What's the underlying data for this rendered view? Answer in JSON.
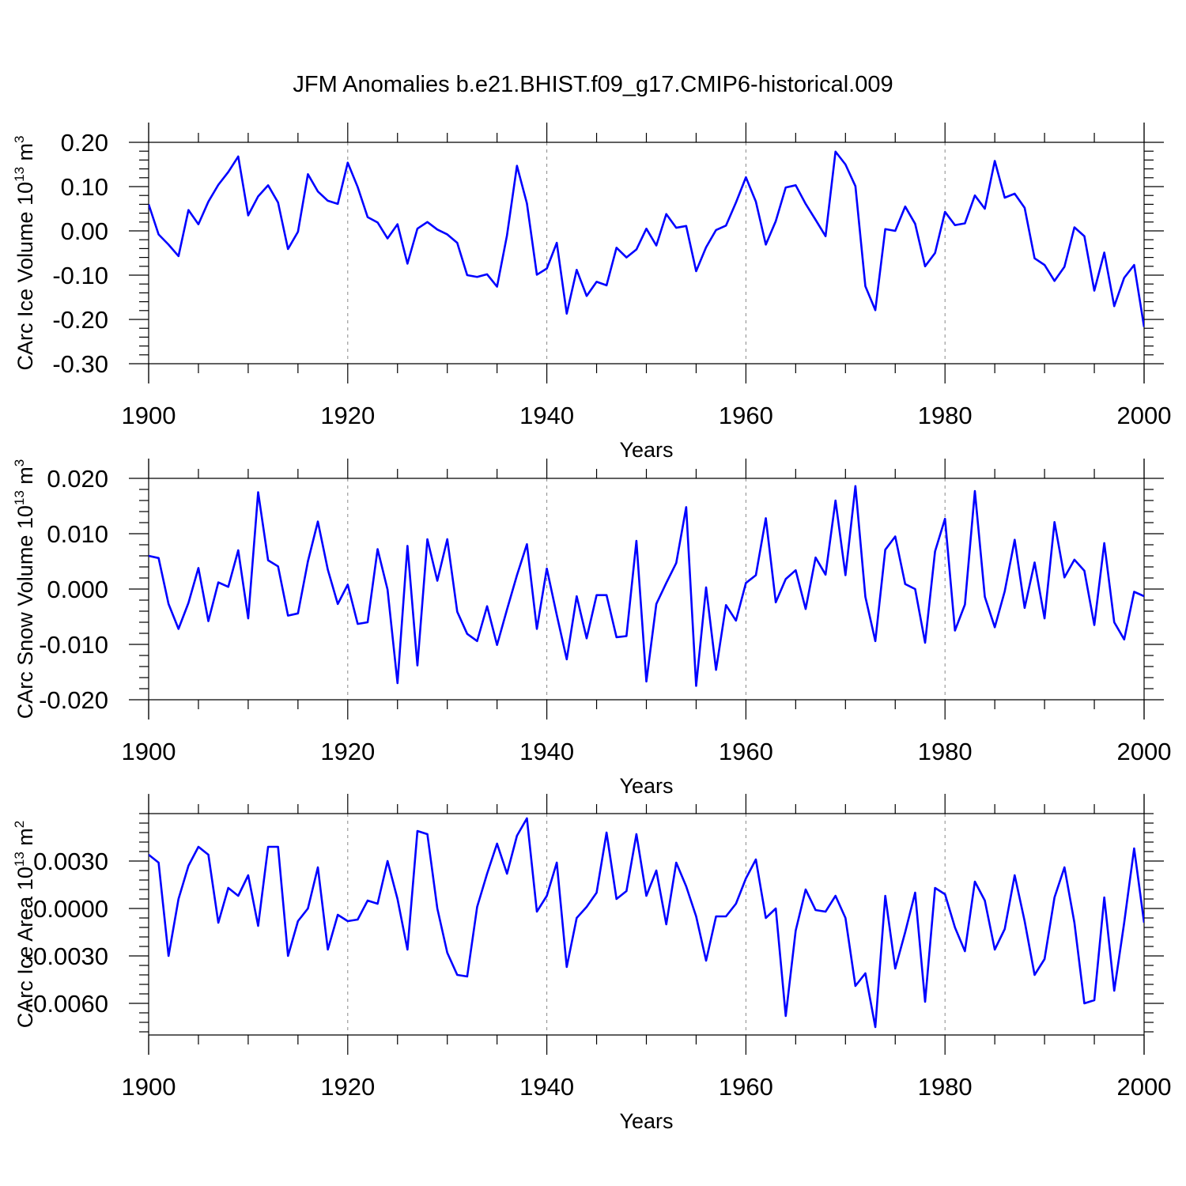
{
  "figure": {
    "title": "JFM Anomalies b.e21.BHIST.f09_g17.CMIP6-historical.009",
    "line_color": "#0000ff",
    "grid_color": "#888888"
  },
  "chart_data": [
    {
      "type": "line",
      "ylabel": "CArc Ice Volume 10",
      "ylabel_sup": "13",
      "ylabel_unit": " m",
      "ylabel_unit_sup": "3",
      "xlabel": "Years",
      "xlim": [
        1900,
        2000
      ],
      "ylim": [
        -0.3,
        0.2
      ],
      "xticks": [
        "1900",
        "1920",
        "1940",
        "1960",
        "1980",
        "2000"
      ],
      "yticks": [
        {
          "v": 0.2,
          "label": "0.20"
        },
        {
          "v": 0.1,
          "label": "0.10"
        },
        {
          "v": 0.0,
          "label": "0.00"
        },
        {
          "v": -0.1,
          "label": "-0.10"
        },
        {
          "v": -0.2,
          "label": "-0.20"
        },
        {
          "v": -0.3,
          "label": "-0.30"
        }
      ],
      "series": [
        {
          "name": "CArc Ice Volume",
          "start_year": 1900,
          "values": [
            0.06,
            -0.008,
            -0.031,
            -0.057,
            0.047,
            0.015,
            0.066,
            0.104,
            0.133,
            0.168,
            0.035,
            0.078,
            0.103,
            0.064,
            -0.041,
            -0.002,
            0.128,
            0.089,
            0.068,
            0.061,
            0.154,
            0.099,
            0.031,
            0.019,
            -0.017,
            0.015,
            -0.074,
            0.005,
            0.02,
            0.003,
            -0.008,
            -0.027,
            -0.1,
            -0.104,
            -0.098,
            -0.126,
            -0.01,
            0.147,
            0.062,
            -0.099,
            -0.085,
            -0.027,
            -0.187,
            -0.088,
            -0.147,
            -0.115,
            -0.123,
            -0.038,
            -0.06,
            -0.042,
            0.005,
            -0.033,
            0.038,
            0.007,
            0.011,
            -0.091,
            -0.037,
            0.002,
            0.012,
            0.064,
            0.121,
            0.066,
            -0.031,
            0.022,
            0.098,
            0.103,
            0.061,
            0.025,
            -0.012,
            0.179,
            0.15,
            0.101,
            -0.125,
            -0.179,
            0.004,
            0.0,
            0.055,
            0.016,
            -0.08,
            -0.05,
            0.043,
            0.013,
            0.017,
            0.08,
            0.05,
            0.158,
            0.075,
            0.084,
            0.052,
            -0.062,
            -0.077,
            -0.113,
            -0.081,
            0.008,
            -0.012,
            -0.135,
            -0.049,
            -0.17,
            -0.106,
            -0.077,
            -0.217
          ]
        }
      ]
    },
    {
      "type": "line",
      "ylabel": "CArc Snow Volume 10",
      "ylabel_sup": "13",
      "ylabel_unit": " m",
      "ylabel_unit_sup": "3",
      "xlabel": "Years",
      "xlim": [
        1900,
        2000
      ],
      "ylim": [
        -0.02,
        0.02
      ],
      "xticks": [
        "1900",
        "1920",
        "1940",
        "1960",
        "1980",
        "2000"
      ],
      "yticks": [
        {
          "v": 0.02,
          "label": "0.020"
        },
        {
          "v": 0.01,
          "label": "0.010"
        },
        {
          "v": 0.0,
          "label": "0.000"
        },
        {
          "v": -0.01,
          "label": "-0.010"
        },
        {
          "v": -0.02,
          "label": "-0.020"
        }
      ],
      "series": [
        {
          "name": "CArc Snow Volume",
          "start_year": 1900,
          "values": [
            0.006,
            0.0056,
            -0.0027,
            -0.0072,
            -0.0025,
            0.0038,
            -0.0058,
            0.0012,
            0.0004,
            0.007,
            -0.0053,
            0.0175,
            0.0052,
            0.0041,
            -0.0048,
            -0.0044,
            0.005,
            0.0122,
            0.0035,
            -0.0027,
            0.0008,
            -0.0063,
            -0.006,
            0.0072,
            -0.0001,
            -0.017,
            0.0078,
            -0.0138,
            0.009,
            0.0015,
            0.009,
            -0.0041,
            -0.0081,
            -0.0094,
            -0.0031,
            -0.0101,
            -0.0037,
            0.0025,
            0.0081,
            -0.0072,
            0.0037,
            -0.0047,
            -0.0127,
            -0.0013,
            -0.0089,
            -0.0011,
            -0.0011,
            -0.0087,
            -0.0085,
            0.0087,
            -0.0167,
            -0.0027,
            0.0011,
            0.0047,
            0.0148,
            -0.0175,
            0.0003,
            -0.0146,
            -0.0029,
            -0.0057,
            0.0011,
            0.0025,
            0.0128,
            -0.0024,
            0.0018,
            0.0034,
            -0.0036,
            0.0057,
            0.0026,
            0.016,
            0.0025,
            0.0186,
            -0.0014,
            -0.0094,
            0.0071,
            0.0095,
            0.0009,
            0.0,
            -0.0097,
            0.0068,
            0.0127,
            -0.0075,
            -0.0028,
            0.0177,
            -0.0014,
            -0.0069,
            -0.0004,
            0.0089,
            -0.0034,
            0.0048,
            -0.0053,
            0.0121,
            0.0021,
            0.0053,
            0.0033,
            -0.0065,
            0.0083,
            -0.006,
            -0.0091,
            -0.0005,
            -0.0013
          ]
        }
      ]
    },
    {
      "type": "line",
      "ylabel": "CArc Ice Area 10",
      "ylabel_sup": "13",
      "ylabel_unit": " m",
      "ylabel_unit_sup": "2",
      "xlabel": "Years",
      "xlim": [
        1900,
        2000
      ],
      "ylim": [
        -0.008,
        0.006
      ],
      "xticks": [
        "1900",
        "1920",
        "1940",
        "1960",
        "1980",
        "2000"
      ],
      "yticks": [
        {
          "v": 0.003,
          "label": "0.0030"
        },
        {
          "v": 0.0,
          "label": "0.0000"
        },
        {
          "v": -0.003,
          "label": "-0.0030"
        },
        {
          "v": -0.006,
          "label": "-0.0060"
        }
      ],
      "series": [
        {
          "name": "CArc Ice Area",
          "start_year": 1900,
          "values": [
            0.0034,
            0.0029,
            -0.003,
            0.0006,
            0.0027,
            0.0039,
            0.0034,
            -0.0009,
            0.0013,
            0.0008,
            0.0021,
            -0.0011,
            0.0039,
            0.0039,
            -0.003,
            -0.0008,
            0.0,
            0.0026,
            -0.0026,
            -0.0004,
            -0.0008,
            -0.0007,
            0.0005,
            0.0003,
            0.003,
            0.0006,
            -0.0026,
            0.0049,
            0.0047,
            0.0,
            -0.0028,
            -0.0042,
            -0.0043,
            0.0001,
            0.0022,
            0.0041,
            0.0022,
            0.0046,
            0.0057,
            -0.0002,
            0.0008,
            0.0029,
            -0.0037,
            -0.0006,
            0.0001,
            0.001,
            0.0048,
            0.0006,
            0.0011,
            0.0047,
            0.0008,
            0.0024,
            -0.001,
            0.0029,
            0.0014,
            -0.0005,
            -0.0033,
            -0.0005,
            -0.0005,
            0.0003,
            0.0019,
            0.0031,
            -0.0006,
            0.0,
            -0.0068,
            -0.0014,
            0.0012,
            -0.0001,
            -0.0002,
            0.0008,
            -0.0006,
            -0.0049,
            -0.0041,
            -0.0075,
            0.0008,
            -0.0038,
            -0.0015,
            0.001,
            -0.0059,
            0.0013,
            0.0009,
            -0.0012,
            -0.0027,
            0.0017,
            0.0005,
            -0.0026,
            -0.0013,
            0.0021,
            -0.0008,
            -0.0042,
            -0.0032,
            0.0007,
            0.0026,
            -0.0009,
            -0.006,
            -0.0058,
            0.0007,
            -0.0052,
            -0.0009,
            0.0038,
            -0.0009
          ]
        }
      ]
    }
  ]
}
